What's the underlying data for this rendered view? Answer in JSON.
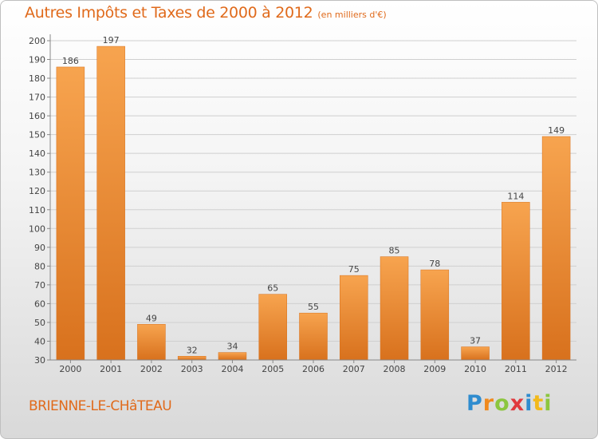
{
  "header": {
    "title": "Autres Impôts et Taxes de 2000 à 2012",
    "subtitle": "(en milliers d'€)"
  },
  "footer": {
    "commune": "BRIENNE-LE-CHâTEAU",
    "logo_letters": [
      {
        "char": "P",
        "color": "#2f8ccf"
      },
      {
        "char": "r",
        "color": "#f08a1e"
      },
      {
        "char": "o",
        "color": "#8cc63f"
      },
      {
        "char": "x",
        "color": "#e03a3e"
      },
      {
        "char": "i",
        "color": "#2f8ccf"
      },
      {
        "char": "t",
        "color": "#f2b91b"
      },
      {
        "char": "i",
        "color": "#8cc63f"
      }
    ]
  },
  "colors": {
    "bar_light": "#f7a44f",
    "bar_dark": "#d8711d",
    "accent": "#e06a1b",
    "grid": "#cfcfcf"
  },
  "chart_data": {
    "type": "bar",
    "title": "Autres Impôts et Taxes de 2000 à 2012",
    "subtitle": "(en milliers d'€)",
    "xlabel": "",
    "ylabel": "",
    "categories": [
      "2000",
      "2001",
      "2002",
      "2003",
      "2004",
      "2005",
      "2006",
      "2007",
      "2008",
      "2009",
      "2010",
      "2011",
      "2012"
    ],
    "values": [
      186,
      197,
      49,
      32,
      34,
      65,
      55,
      75,
      85,
      78,
      37,
      114,
      149
    ],
    "ylim": [
      30,
      200
    ],
    "yticks": [
      30,
      40,
      50,
      60,
      70,
      80,
      90,
      100,
      110,
      120,
      130,
      140,
      150,
      160,
      170,
      180,
      190,
      200
    ],
    "grid": true,
    "legend": "none"
  }
}
